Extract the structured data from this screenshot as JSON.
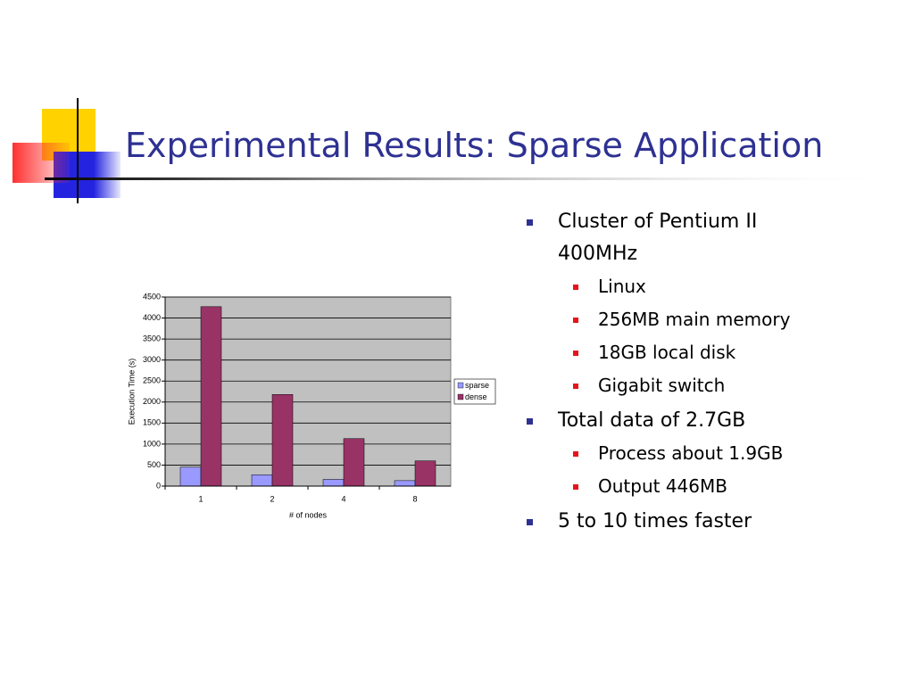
{
  "title": "Experimental Results: Sparse Application",
  "chart_data": {
    "type": "bar",
    "categories": [
      "1",
      "2",
      "4",
      "8"
    ],
    "series": [
      {
        "name": "sparse",
        "color": "#9999ff",
        "values": [
          450,
          270,
          160,
          130
        ]
      },
      {
        "name": "dense",
        "color": "#993366",
        "values": [
          4270,
          2180,
          1130,
          600
        ]
      }
    ],
    "ylim": [
      0,
      4500
    ],
    "yticks": [
      0,
      500,
      1000,
      1500,
      2000,
      2500,
      3000,
      3500,
      4000,
      4500
    ],
    "x_label": "# of nodes",
    "y_label": "Execution Time (s)",
    "grid": true,
    "legend": "right"
  },
  "bullets": [
    {
      "text": "Cluster of Pentium II 400MHz",
      "sub": [
        "Linux",
        "256MB main memory",
        "18GB local disk",
        "Gigabit switch"
      ]
    },
    {
      "text": "Total data of 2.7GB",
      "sub": [
        "Process about 1.9GB",
        "Output 446MB"
      ]
    },
    {
      "text": "5 to 10 times faster",
      "sub": []
    }
  ]
}
